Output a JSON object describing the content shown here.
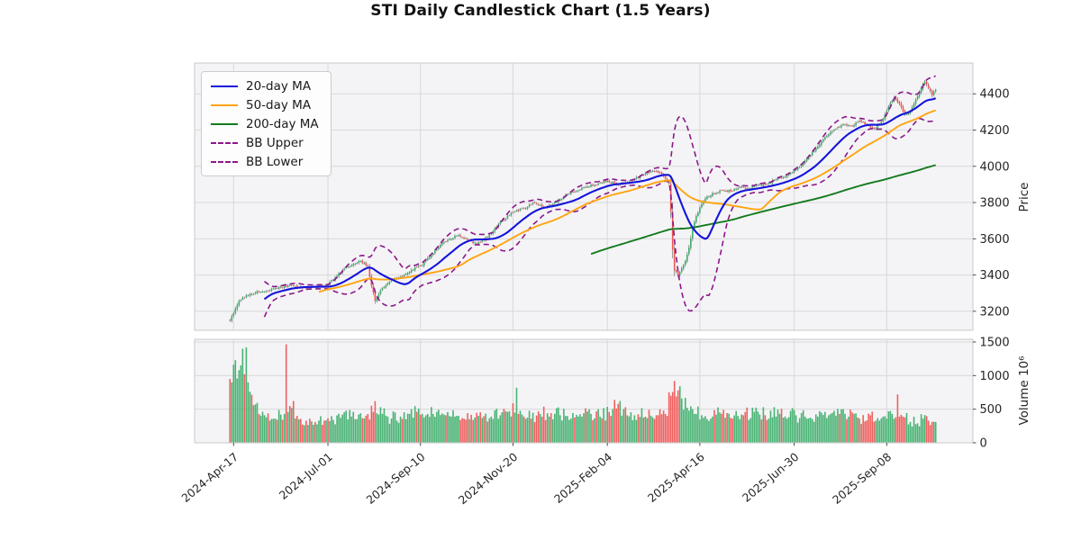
{
  "title": "STI Daily Candlestick Chart (1.5 Years)",
  "legend": {
    "items": [
      {
        "key": "ma20",
        "label": "20-day MA",
        "color": "#1414dd",
        "dash": "solid"
      },
      {
        "key": "ma50",
        "label": "50-day MA",
        "color": "#ffa410",
        "dash": "solid"
      },
      {
        "key": "ma200",
        "label": "200-day MA",
        "color": "#147a1e",
        "dash": "solid"
      },
      {
        "key": "bb_upper",
        "label": "BB Upper",
        "color": "#8c188c",
        "dash": "dashed"
      },
      {
        "key": "bb_lower",
        "label": "BB Lower",
        "color": "#8c188c",
        "dash": "dashed"
      }
    ]
  },
  "axes": {
    "price_label": "Price",
    "volume_label": "Volume  10⁶",
    "price_ticks": [
      3200,
      3400,
      3600,
      3800,
      4000,
      4200,
      4400
    ],
    "volume_ticks": [
      0,
      500,
      1000,
      1500
    ],
    "date_ticks": [
      {
        "day": 2,
        "label": "2024-Apr-17"
      },
      {
        "day": 54,
        "label": "2024-Jul-01"
      },
      {
        "day": 105,
        "label": "2024-Sep-10"
      },
      {
        "day": 156,
        "label": "2024-Nov-20"
      },
      {
        "day": 208,
        "label": "2025-Feb-04"
      },
      {
        "day": 259,
        "label": "2025-Apr-16"
      },
      {
        "day": 311,
        "label": "2025-Jun-30"
      },
      {
        "day": 362,
        "label": "2025-Sep-08"
      }
    ]
  },
  "chart_data": {
    "type": "candlestick",
    "title": "STI Daily Candlestick Chart (1.5 Years)",
    "n_days": 390,
    "price_ylim": [
      3095,
      4570
    ],
    "volume_ylim": [
      0,
      1540
    ],
    "indicators": [
      "20-day MA",
      "50-day MA",
      "200-day MA",
      "BB Upper (20d +2σ)",
      "BB Lower (20d -2σ)"
    ],
    "close_anchors": [
      [
        0,
        3148
      ],
      [
        2,
        3190
      ],
      [
        5,
        3258
      ],
      [
        9,
        3288
      ],
      [
        14,
        3302
      ],
      [
        22,
        3318
      ],
      [
        28,
        3335
      ],
      [
        34,
        3345
      ],
      [
        40,
        3328
      ],
      [
        46,
        3336
      ],
      [
        54,
        3345
      ],
      [
        58,
        3388
      ],
      [
        63,
        3435
      ],
      [
        68,
        3460
      ],
      [
        72,
        3478
      ],
      [
        76,
        3448
      ],
      [
        78,
        3342
      ],
      [
        80,
        3258
      ],
      [
        83,
        3315
      ],
      [
        88,
        3362
      ],
      [
        94,
        3392
      ],
      [
        100,
        3428
      ],
      [
        105,
        3450
      ],
      [
        110,
        3498
      ],
      [
        116,
        3568
      ],
      [
        121,
        3598
      ],
      [
        126,
        3620
      ],
      [
        131,
        3590
      ],
      [
        136,
        3574
      ],
      [
        142,
        3608
      ],
      [
        148,
        3682
      ],
      [
        156,
        3745
      ],
      [
        162,
        3768
      ],
      [
        168,
        3798
      ],
      [
        173,
        3772
      ],
      [
        178,
        3792
      ],
      [
        184,
        3832
      ],
      [
        190,
        3860
      ],
      [
        197,
        3888
      ],
      [
        203,
        3905
      ],
      [
        208,
        3922
      ],
      [
        213,
        3898
      ],
      [
        219,
        3912
      ],
      [
        226,
        3948
      ],
      [
        233,
        3975
      ],
      [
        238,
        3958
      ],
      [
        242,
        3905
      ],
      [
        243,
        3750
      ],
      [
        244,
        3540
      ],
      [
        245,
        3425
      ],
      [
        247,
        3398
      ],
      [
        249,
        3438
      ],
      [
        251,
        3478
      ],
      [
        253,
        3552
      ],
      [
        255,
        3655
      ],
      [
        257,
        3725
      ],
      [
        259,
        3772
      ],
      [
        262,
        3822
      ],
      [
        266,
        3852
      ],
      [
        271,
        3868
      ],
      [
        276,
        3862
      ],
      [
        281,
        3885
      ],
      [
        286,
        3878
      ],
      [
        291,
        3898
      ],
      [
        296,
        3902
      ],
      [
        301,
        3928
      ],
      [
        306,
        3942
      ],
      [
        310,
        3968
      ],
      [
        315,
        4008
      ],
      [
        321,
        4078
      ],
      [
        327,
        4148
      ],
      [
        333,
        4202
      ],
      [
        338,
        4232
      ],
      [
        343,
        4222
      ],
      [
        347,
        4252
      ],
      [
        351,
        4228
      ],
      [
        355,
        4208
      ],
      [
        359,
        4245
      ],
      [
        363,
        4330
      ],
      [
        366,
        4378
      ],
      [
        369,
        4345
      ],
      [
        372,
        4288
      ],
      [
        375,
        4302
      ],
      [
        378,
        4368
      ],
      [
        381,
        4432
      ],
      [
        383,
        4468
      ],
      [
        385,
        4432
      ],
      [
        387,
        4392
      ],
      [
        389,
        4422
      ]
    ],
    "volume_anchors": [
      [
        0,
        950
      ],
      [
        1,
        900
      ],
      [
        3,
        1230
      ],
      [
        5,
        1080
      ],
      [
        7,
        1400
      ],
      [
        8,
        1020
      ],
      [
        9,
        1420
      ],
      [
        10,
        900
      ],
      [
        11,
        760
      ],
      [
        13,
        560
      ],
      [
        16,
        430
      ],
      [
        20,
        380
      ],
      [
        25,
        360
      ],
      [
        28,
        420
      ],
      [
        30,
        430
      ],
      [
        31,
        1465
      ],
      [
        32,
        460
      ],
      [
        34,
        520
      ],
      [
        37,
        400
      ],
      [
        42,
        330
      ],
      [
        47,
        310
      ],
      [
        52,
        330
      ],
      [
        57,
        340
      ],
      [
        62,
        420
      ],
      [
        67,
        390
      ],
      [
        71,
        420
      ],
      [
        76,
        430
      ],
      [
        79,
        460
      ],
      [
        80,
        620
      ],
      [
        81,
        440
      ],
      [
        84,
        430
      ],
      [
        89,
        360
      ],
      [
        94,
        390
      ],
      [
        99,
        430
      ],
      [
        104,
        510
      ],
      [
        109,
        430
      ],
      [
        114,
        460
      ],
      [
        119,
        410
      ],
      [
        124,
        390
      ],
      [
        129,
        360
      ],
      [
        134,
        340
      ],
      [
        139,
        370
      ],
      [
        144,
        390
      ],
      [
        149,
        410
      ],
      [
        154,
        470
      ],
      [
        157,
        450
      ],
      [
        158,
        820
      ],
      [
        159,
        430
      ],
      [
        161,
        420
      ],
      [
        166,
        360
      ],
      [
        171,
        430
      ],
      [
        176,
        390
      ],
      [
        182,
        410
      ],
      [
        188,
        360
      ],
      [
        194,
        390
      ],
      [
        199,
        430
      ],
      [
        204,
        390
      ],
      [
        209,
        460
      ],
      [
        213,
        510
      ],
      [
        218,
        530
      ],
      [
        223,
        410
      ],
      [
        229,
        390
      ],
      [
        235,
        410
      ],
      [
        240,
        430
      ],
      [
        243,
        700
      ],
      [
        245,
        920
      ],
      [
        247,
        780
      ],
      [
        249,
        660
      ],
      [
        252,
        520
      ],
      [
        256,
        430
      ],
      [
        260,
        410
      ],
      [
        266,
        390
      ],
      [
        271,
        430
      ],
      [
        277,
        360
      ],
      [
        283,
        410
      ],
      [
        289,
        460
      ],
      [
        295,
        410
      ],
      [
        299,
        380
      ],
      [
        300,
        530
      ],
      [
        301,
        390
      ],
      [
        306,
        390
      ],
      [
        312,
        410
      ],
      [
        318,
        360
      ],
      [
        324,
        390
      ],
      [
        330,
        410
      ],
      [
        336,
        430
      ],
      [
        341,
        390
      ],
      [
        347,
        360
      ],
      [
        353,
        410
      ],
      [
        358,
        330
      ],
      [
        362,
        360
      ],
      [
        365,
        430
      ],
      [
        367,
        380
      ],
      [
        368,
        720
      ],
      [
        369,
        390
      ],
      [
        371,
        390
      ],
      [
        375,
        310
      ],
      [
        379,
        290
      ],
      [
        382,
        360
      ],
      [
        385,
        330
      ],
      [
        389,
        310
      ]
    ]
  },
  "colors": {
    "up": "#3aad68",
    "down": "#ef5350",
    "wick": "#6f6f6f",
    "panel_bg": "#f4f4f6",
    "grid": "#d8d8da",
    "spine": "#c9c9cd",
    "tick": "#3a3a3a",
    "text": "#262626"
  }
}
